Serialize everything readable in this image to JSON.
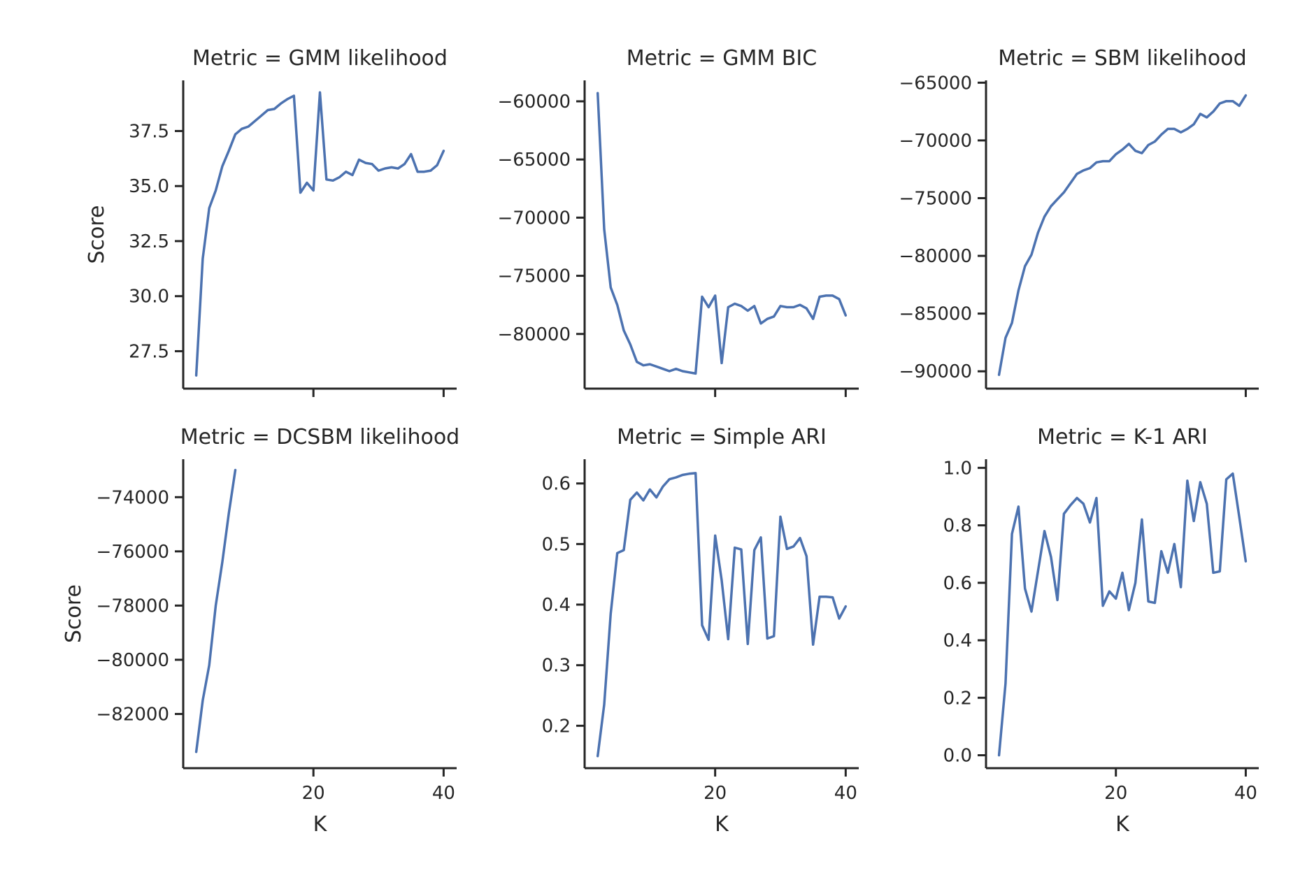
{
  "style": {
    "line_color": "#4c72b0",
    "axis_color": "#262626",
    "background": "#ffffff"
  },
  "chart_data": [
    {
      "type": "line",
      "title": "Metric = GMM likelihood",
      "xlabel": "",
      "ylabel": "Score",
      "xlim": [
        0,
        42
      ],
      "ylim": [
        25.8,
        39.8
      ],
      "xticks": [
        20,
        40
      ],
      "xticklabels": [
        "",
        ""
      ],
      "yticks": [
        27.5,
        30.0,
        32.5,
        35.0,
        37.5
      ],
      "yticklabels": [
        "27.5",
        "30.0",
        "32.5",
        "35.0",
        "37.5"
      ],
      "x": [
        2,
        3,
        4,
        5,
        6,
        7,
        8,
        9,
        10,
        11,
        12,
        13,
        14,
        15,
        16,
        17,
        18,
        19,
        20,
        21,
        22,
        23,
        24,
        25,
        26,
        27,
        28,
        29,
        30,
        31,
        32,
        33,
        34,
        35,
        36,
        37,
        38,
        39,
        40
      ],
      "y": [
        26.4,
        31.7,
        34.0,
        34.8,
        35.9,
        36.6,
        37.35,
        37.6,
        37.7,
        37.95,
        38.2,
        38.45,
        38.5,
        38.75,
        38.95,
        39.1,
        34.7,
        35.15,
        34.8,
        39.25,
        35.3,
        35.25,
        35.4,
        35.65,
        35.5,
        36.2,
        36.05,
        36.0,
        35.7,
        35.8,
        35.85,
        35.8,
        36.0,
        36.45,
        35.65,
        35.65,
        35.7,
        35.95,
        36.6
      ]
    },
    {
      "type": "line",
      "title": "Metric = GMM BIC",
      "xlabel": "",
      "ylabel": "",
      "xlim": [
        0,
        42
      ],
      "ylim": [
        -84700,
        -58200
      ],
      "xticks": [
        20,
        40
      ],
      "xticklabels": [
        "",
        ""
      ],
      "yticks": [
        -80000,
        -75000,
        -70000,
        -65000,
        -60000
      ],
      "yticklabels": [
        "−80000",
        "−75000",
        "−70000",
        "−65000",
        "−60000"
      ],
      "x": [
        2,
        3,
        4,
        5,
        6,
        7,
        8,
        9,
        10,
        11,
        12,
        13,
        14,
        15,
        16,
        17,
        18,
        19,
        20,
        21,
        22,
        23,
        24,
        25,
        26,
        27,
        28,
        29,
        30,
        31,
        32,
        33,
        34,
        35,
        36,
        37,
        38,
        39,
        40
      ],
      "y": [
        -59300,
        -71000,
        -76000,
        -77500,
        -79700,
        -80900,
        -82400,
        -82700,
        -82600,
        -82800,
        -83000,
        -83200,
        -83000,
        -83200,
        -83300,
        -83400,
        -76800,
        -77700,
        -76700,
        -82500,
        -77700,
        -77400,
        -77600,
        -78000,
        -77600,
        -79100,
        -78700,
        -78500,
        -77600,
        -77700,
        -77700,
        -77500,
        -77800,
        -78700,
        -76800,
        -76700,
        -76700,
        -77000,
        -78400
      ]
    },
    {
      "type": "line",
      "title": "Metric = SBM likelihood",
      "xlabel": "",
      "ylabel": "",
      "xlim": [
        0,
        42
      ],
      "ylim": [
        -91500,
        -64800
      ],
      "xticks": [
        40
      ],
      "xticklabels": [
        ""
      ],
      "yticks": [
        -90000,
        -85000,
        -80000,
        -75000,
        -70000,
        -65000
      ],
      "yticklabels": [
        "−90000",
        "−85000",
        "−80000",
        "−75000",
        "−70000",
        "−65000"
      ],
      "x": [
        2,
        3,
        4,
        5,
        6,
        7,
        8,
        9,
        10,
        11,
        12,
        13,
        14,
        15,
        16,
        17,
        18,
        19,
        20,
        21,
        22,
        23,
        24,
        25,
        26,
        27,
        28,
        29,
        30,
        31,
        32,
        33,
        34,
        35,
        36,
        37,
        38,
        39,
        40
      ],
      "y": [
        -90300,
        -87100,
        -85800,
        -83000,
        -80900,
        -79900,
        -78000,
        -76600,
        -75700,
        -75100,
        -74500,
        -73700,
        -72900,
        -72600,
        -72400,
        -71900,
        -71800,
        -71800,
        -71200,
        -70800,
        -70300,
        -70900,
        -71100,
        -70400,
        -70100,
        -69500,
        -69000,
        -69000,
        -69300,
        -69000,
        -68600,
        -67700,
        -68000,
        -67500,
        -66800,
        -66600,
        -66600,
        -67000,
        -66100
      ]
    },
    {
      "type": "line",
      "title": "Metric = DCSBM likelihood",
      "xlabel": "K",
      "ylabel": "Score",
      "xlim": [
        0,
        42
      ],
      "ylim": [
        -84000,
        -72600
      ],
      "xticks": [
        20,
        40
      ],
      "xticklabels": [
        "20",
        "40"
      ],
      "yticks": [
        -82000,
        -80000,
        -78000,
        -76000,
        -74000
      ],
      "yticklabels": [
        "−82000",
        "−80000",
        "−78000",
        "−76000",
        "−74000"
      ],
      "x": [
        2,
        3,
        4,
        5,
        6,
        7,
        8
      ],
      "y": [
        -83400,
        -81500,
        -80200,
        -78000,
        -76400,
        -74600,
        -73000
      ]
    },
    {
      "type": "line",
      "title": "Metric = Simple ARI",
      "xlabel": "K",
      "ylabel": "",
      "xlim": [
        0,
        42
      ],
      "ylim": [
        0.13,
        0.64
      ],
      "xticks": [
        20,
        40
      ],
      "xticklabels": [
        "20",
        "40"
      ],
      "yticks": [
        0.2,
        0.3,
        0.4,
        0.5,
        0.6
      ],
      "yticklabels": [
        "0.2",
        "0.3",
        "0.4",
        "0.5",
        "0.6"
      ],
      "x": [
        2,
        3,
        4,
        5,
        6,
        7,
        8,
        9,
        10,
        11,
        12,
        13,
        14,
        15,
        16,
        17,
        18,
        19,
        20,
        21,
        22,
        23,
        24,
        25,
        26,
        27,
        28,
        29,
        30,
        31,
        32,
        33,
        34,
        35,
        36,
        37,
        38,
        39,
        40
      ],
      "y": [
        0.15,
        0.235,
        0.385,
        0.485,
        0.49,
        0.573,
        0.585,
        0.572,
        0.59,
        0.577,
        0.595,
        0.607,
        0.61,
        0.614,
        0.616,
        0.617,
        0.366,
        0.342,
        0.514,
        0.44,
        0.343,
        0.494,
        0.491,
        0.335,
        0.49,
        0.511,
        0.344,
        0.348,
        0.545,
        0.492,
        0.496,
        0.51,
        0.48,
        0.334,
        0.413,
        0.413,
        0.412,
        0.377,
        0.397
      ]
    },
    {
      "type": "line",
      "title": "Metric = K-1 ARI",
      "xlabel": "K",
      "ylabel": "",
      "xlim": [
        0,
        42
      ],
      "ylim": [
        -0.045,
        1.03
      ],
      "xticks": [
        20,
        40
      ],
      "xticklabels": [
        "20",
        "40"
      ],
      "yticks": [
        0.0,
        0.2,
        0.4,
        0.6,
        0.8,
        1.0
      ],
      "yticklabels": [
        "0.0",
        "0.2",
        "0.4",
        "0.6",
        "0.8",
        "1.0"
      ],
      "x": [
        2,
        3,
        4,
        5,
        6,
        7,
        8,
        9,
        10,
        11,
        12,
        13,
        14,
        15,
        16,
        17,
        18,
        19,
        20,
        21,
        22,
        23,
        24,
        25,
        26,
        27,
        28,
        29,
        30,
        31,
        32,
        33,
        34,
        35,
        36,
        37,
        38,
        39,
        40
      ],
      "y": [
        0.0,
        0.25,
        0.77,
        0.865,
        0.58,
        0.5,
        0.64,
        0.78,
        0.69,
        0.54,
        0.84,
        0.87,
        0.895,
        0.875,
        0.81,
        0.895,
        0.52,
        0.57,
        0.545,
        0.635,
        0.505,
        0.6,
        0.82,
        0.535,
        0.53,
        0.71,
        0.635,
        0.735,
        0.585,
        0.955,
        0.815,
        0.95,
        0.875,
        0.635,
        0.64,
        0.96,
        0.98,
        0.83,
        0.675
      ]
    }
  ]
}
